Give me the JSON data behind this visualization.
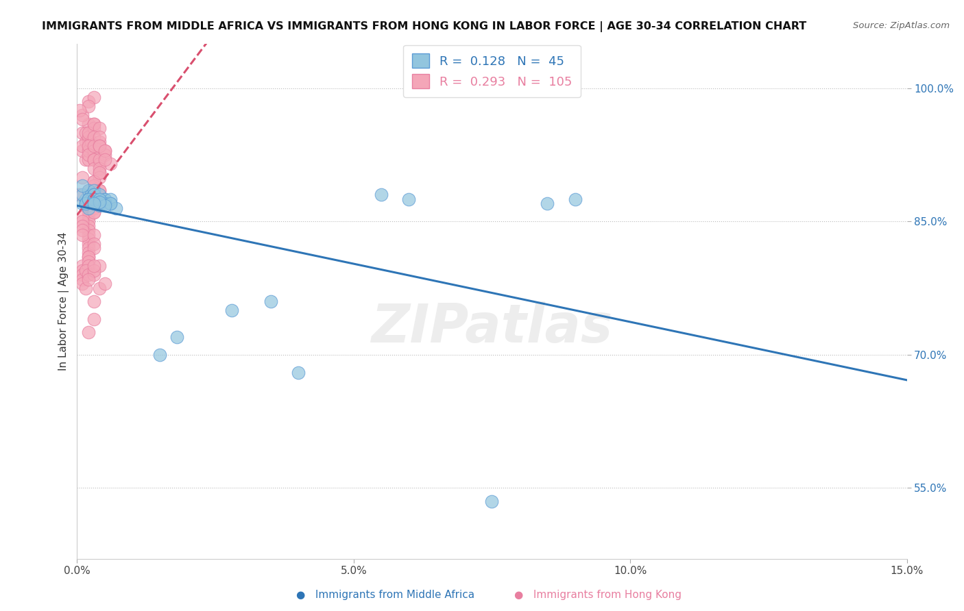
{
  "title": "IMMIGRANTS FROM MIDDLE AFRICA VS IMMIGRANTS FROM HONG KONG IN LABOR FORCE | AGE 30-34 CORRELATION CHART",
  "source": "Source: ZipAtlas.com",
  "ylabel": "In Labor Force | Age 30-34",
  "xlim": [
    0.0,
    0.15
  ],
  "ylim": [
    0.47,
    1.05
  ],
  "xticks": [
    0.0,
    0.05,
    0.1,
    0.15
  ],
  "xticklabels": [
    "0.0%",
    "5.0%",
    "10.0%",
    "15.0%"
  ],
  "yticks": [
    0.55,
    0.7,
    0.85,
    1.0
  ],
  "yticklabels": [
    "55.0%",
    "70.0%",
    "85.0%",
    "100.0%"
  ],
  "legend_R_blue": "0.128",
  "legend_N_blue": "45",
  "legend_R_pink": "0.293",
  "legend_N_pink": "105",
  "blue_scatter_color": "#92c5de",
  "blue_edge_color": "#5b9bd5",
  "pink_scatter_color": "#f4a6b8",
  "pink_edge_color": "#e87fa0",
  "blue_line_color": "#2e75b6",
  "pink_line_color": "#d94f6e",
  "watermark": "ZIPatlas",
  "blue_x": [
    0.001,
    0.0015,
    0.001,
    0.002,
    0.0025,
    0.002,
    0.003,
    0.0015,
    0.001,
    0.002,
    0.003,
    0.0025,
    0.002,
    0.0015,
    0.003,
    0.004,
    0.003,
    0.002,
    0.004,
    0.003,
    0.005,
    0.004,
    0.003,
    0.006,
    0.005,
    0.004,
    0.003,
    0.006,
    0.005,
    0.004,
    0.007,
    0.006,
    0.005,
    0.004,
    0.003,
    0.018,
    0.015,
    0.035,
    0.055,
    0.06,
    0.028,
    0.04,
    0.075,
    0.09,
    0.085
  ],
  "blue_y": [
    0.87,
    0.875,
    0.88,
    0.885,
    0.88,
    0.875,
    0.885,
    0.87,
    0.89,
    0.875,
    0.88,
    0.875,
    0.865,
    0.87,
    0.875,
    0.87,
    0.88,
    0.875,
    0.88,
    0.875,
    0.875,
    0.87,
    0.875,
    0.87,
    0.875,
    0.868,
    0.872,
    0.875,
    0.87,
    0.875,
    0.865,
    0.87,
    0.868,
    0.872,
    0.87,
    0.72,
    0.7,
    0.76,
    0.88,
    0.875,
    0.75,
    0.68,
    0.535,
    0.875,
    0.87
  ],
  "pink_x": [
    0.0005,
    0.001,
    0.0015,
    0.001,
    0.002,
    0.0015,
    0.001,
    0.002,
    0.003,
    0.002,
    0.0005,
    0.001,
    0.0015,
    0.002,
    0.001,
    0.002,
    0.003,
    0.002,
    0.003,
    0.001,
    0.002,
    0.003,
    0.0025,
    0.002,
    0.003,
    0.004,
    0.003,
    0.002,
    0.004,
    0.003,
    0.002,
    0.003,
    0.004,
    0.003,
    0.004,
    0.005,
    0.003,
    0.004,
    0.005,
    0.004,
    0.003,
    0.004,
    0.005,
    0.006,
    0.004,
    0.003,
    0.004,
    0.005,
    0.004,
    0.003,
    0.002,
    0.003,
    0.004,
    0.003,
    0.004,
    0.003,
    0.002,
    0.003,
    0.004,
    0.003,
    0.002,
    0.003,
    0.002,
    0.003,
    0.004,
    0.003,
    0.002,
    0.003,
    0.002,
    0.001,
    0.002,
    0.001,
    0.002,
    0.001,
    0.002,
    0.001,
    0.002,
    0.001,
    0.002,
    0.003,
    0.002,
    0.003,
    0.002,
    0.003,
    0.001,
    0.002,
    0.001,
    0.002,
    0.001,
    0.002,
    0.001,
    0.0015,
    0.001,
    0.002,
    0.0015,
    0.003,
    0.004,
    0.003,
    0.002,
    0.003,
    0.003,
    0.004,
    0.005,
    0.002,
    0.003
  ],
  "pink_y": [
    0.88,
    0.9,
    0.92,
    0.95,
    0.96,
    0.94,
    0.97,
    0.985,
    0.99,
    0.98,
    0.975,
    0.965,
    0.95,
    0.94,
    0.93,
    0.92,
    0.96,
    0.945,
    0.955,
    0.935,
    0.93,
    0.925,
    0.94,
    0.95,
    0.96,
    0.955,
    0.945,
    0.935,
    0.94,
    0.93,
    0.925,
    0.935,
    0.945,
    0.92,
    0.935,
    0.93,
    0.92,
    0.915,
    0.925,
    0.935,
    0.91,
    0.92,
    0.93,
    0.915,
    0.905,
    0.895,
    0.91,
    0.92,
    0.9,
    0.89,
    0.885,
    0.895,
    0.905,
    0.875,
    0.885,
    0.875,
    0.865,
    0.875,
    0.885,
    0.87,
    0.86,
    0.87,
    0.855,
    0.865,
    0.87,
    0.86,
    0.85,
    0.86,
    0.845,
    0.855,
    0.84,
    0.85,
    0.835,
    0.845,
    0.83,
    0.84,
    0.825,
    0.835,
    0.82,
    0.835,
    0.815,
    0.825,
    0.81,
    0.82,
    0.8,
    0.81,
    0.795,
    0.805,
    0.79,
    0.8,
    0.785,
    0.795,
    0.78,
    0.79,
    0.775,
    0.79,
    0.8,
    0.795,
    0.785,
    0.8,
    0.76,
    0.775,
    0.78,
    0.725,
    0.74
  ]
}
